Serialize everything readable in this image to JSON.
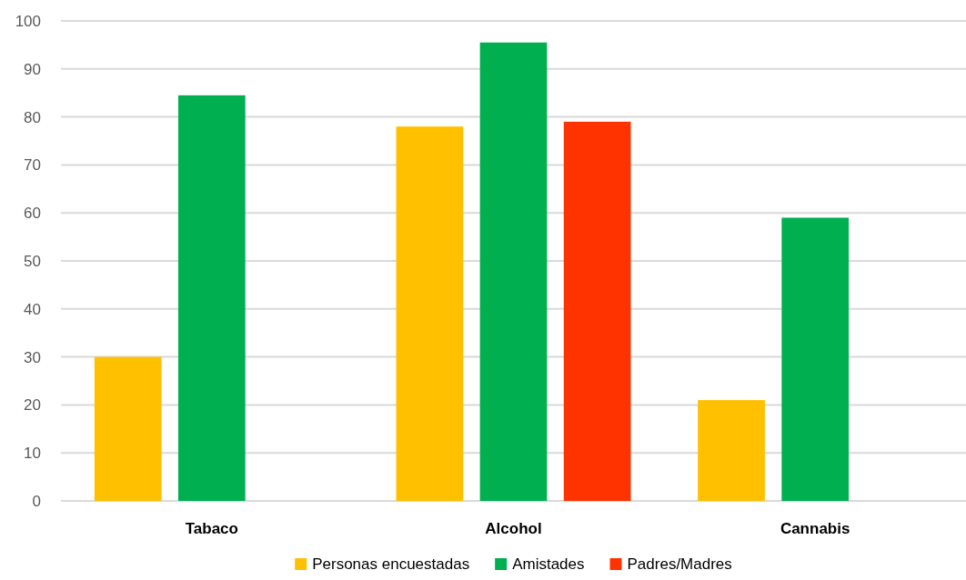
{
  "chart_data": {
    "type": "bar",
    "categories": [
      "Tabaco",
      "Alcohol",
      "Cannabis"
    ],
    "series": [
      {
        "name": "Personas encuestadas",
        "color": "#ffc000",
        "values": [
          30,
          78,
          21
        ]
      },
      {
        "name": "Amistades",
        "color": "#00b050",
        "values": [
          84.5,
          95.5,
          59
        ]
      },
      {
        "name": "Padres/Madres",
        "color": "#ff3300",
        "values": [
          null,
          79,
          null
        ]
      }
    ],
    "ylim": [
      0,
      100
    ],
    "yticks": [
      0,
      10,
      20,
      30,
      40,
      50,
      60,
      70,
      80,
      90,
      100
    ],
    "grid": "y",
    "legend": "bottom"
  }
}
